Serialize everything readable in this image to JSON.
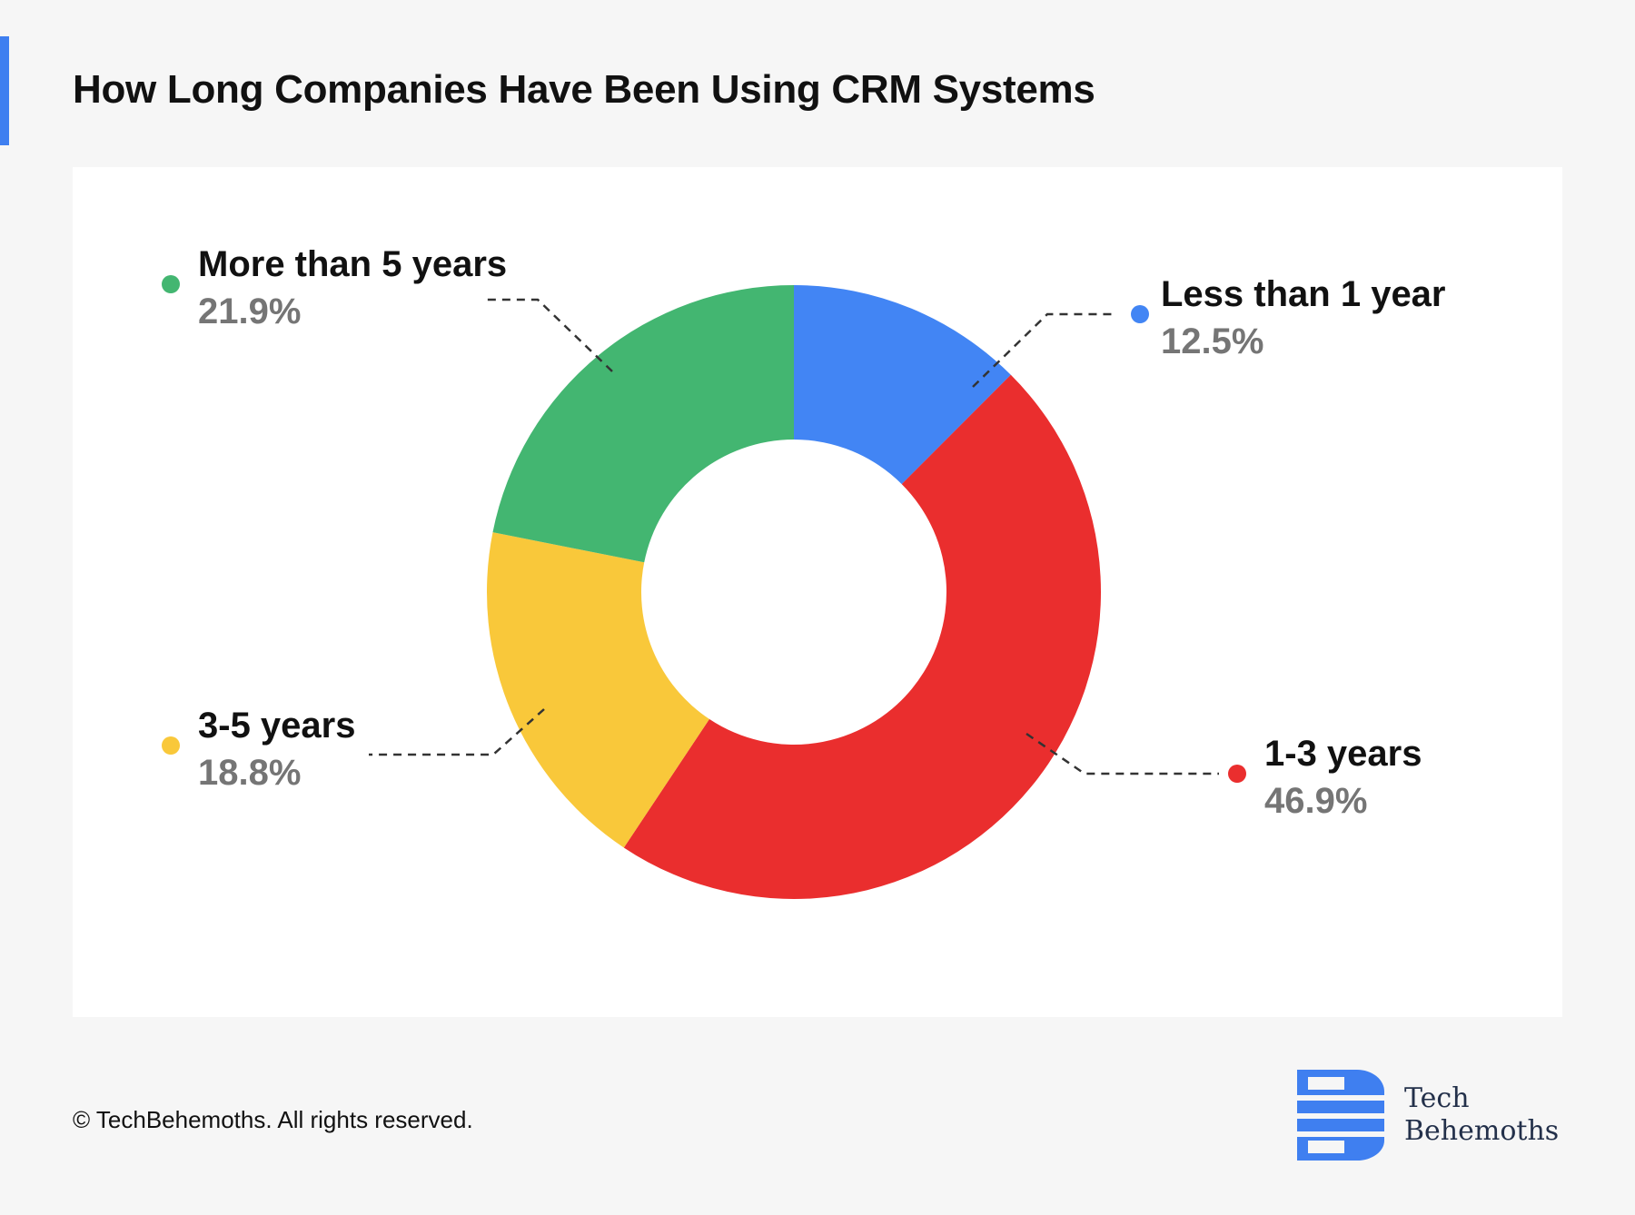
{
  "page": {
    "title": "How Long Companies Have Been Using CRM Systems",
    "copyright": "© TechBehemoths. All rights reserved."
  },
  "brand": {
    "name_line1": "Tech",
    "name_line2": "Behemoths",
    "logo_icon": "techbehemoths-b-logo-icon",
    "logo_color": "#3f7ff0"
  },
  "colors": {
    "accent": "#3f7ff0",
    "leader_line": "#333333"
  },
  "chart_data": {
    "type": "pie",
    "variant": "donut",
    "title": "How Long Companies Have Been Using CRM Systems",
    "start_angle_deg": 0,
    "direction": "clockwise",
    "slices": [
      {
        "label": "Less than 1 year",
        "value": 12.5,
        "display": "12.5%",
        "color": "#4285f4"
      },
      {
        "label": "1-3 years",
        "value": 46.9,
        "display": "46.9%",
        "color": "#ea2e2e"
      },
      {
        "label": "3-5 years",
        "value": 18.8,
        "display": "18.8%",
        "color": "#f9c83a"
      },
      {
        "label": "More than 5 years",
        "value": 21.9,
        "display": "21.9%",
        "color": "#43b671"
      }
    ]
  }
}
